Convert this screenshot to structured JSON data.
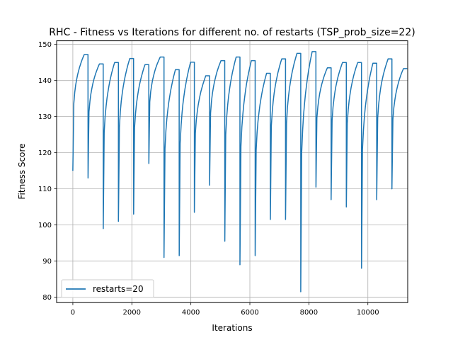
{
  "chart_data": {
    "type": "line",
    "title": "RHC - Fitness vs Iterations for different no. of restarts (TSP_prob_size=22)",
    "xlabel": "Iterations",
    "ylabel": "Fitness Score",
    "xlim": [
      -550,
      11350
    ],
    "ylim": [
      78.5,
      151.0
    ],
    "xticks": [
      0,
      2000,
      4000,
      6000,
      8000,
      10000
    ],
    "yticks": [
      80,
      90,
      100,
      110,
      120,
      130,
      140,
      150
    ],
    "grid": true,
    "legend_position": "lower-left",
    "series": [
      {
        "name": "restarts=20",
        "color": "#1f77b4",
        "segments": [
          {
            "start": 0,
            "len": 515,
            "y0": 115.0,
            "plateau": 147.2
          },
          {
            "start": 515,
            "len": 515,
            "y0": 113.0,
            "plateau": 144.6
          },
          {
            "start": 1030,
            "len": 515,
            "y0": 99.0,
            "plateau": 145.0
          },
          {
            "start": 1545,
            "len": 515,
            "y0": 101.0,
            "plateau": 146.1
          },
          {
            "start": 2060,
            "len": 515,
            "y0": 103.0,
            "plateau": 144.4
          },
          {
            "start": 2575,
            "len": 515,
            "y0": 117.0,
            "plateau": 146.5
          },
          {
            "start": 3090,
            "len": 515,
            "y0": 91.0,
            "plateau": 143.0
          },
          {
            "start": 3605,
            "len": 515,
            "y0": 91.5,
            "plateau": 145.1
          },
          {
            "start": 4120,
            "len": 515,
            "y0": 103.5,
            "plateau": 141.3
          },
          {
            "start": 4635,
            "len": 515,
            "y0": 111.0,
            "plateau": 145.5
          },
          {
            "start": 5150,
            "len": 515,
            "y0": 95.5,
            "plateau": 146.5
          },
          {
            "start": 5665,
            "len": 515,
            "y0": 89.0,
            "plateau": 145.5
          },
          {
            "start": 6180,
            "len": 515,
            "y0": 91.5,
            "plateau": 142.0
          },
          {
            "start": 6695,
            "len": 515,
            "y0": 101.5,
            "plateau": 146.0
          },
          {
            "start": 7210,
            "len": 515,
            "y0": 101.5,
            "plateau": 147.5
          },
          {
            "start": 7725,
            "len": 515,
            "y0": 81.5,
            "plateau": 148.0
          },
          {
            "start": 8240,
            "len": 515,
            "y0": 110.5,
            "plateau": 143.5
          },
          {
            "start": 8755,
            "len": 515,
            "y0": 107.0,
            "plateau": 145.0
          },
          {
            "start": 9270,
            "len": 515,
            "y0": 105.0,
            "plateau": 145.0
          },
          {
            "start": 9785,
            "len": 515,
            "y0": 88.0,
            "plateau": 144.8
          },
          {
            "start": 10300,
            "len": 515,
            "y0": 107.0,
            "plateau": 146.0
          },
          {
            "start": 10815,
            "len": 520,
            "y0": 110.0,
            "plateau": 143.3
          }
        ]
      }
    ]
  }
}
